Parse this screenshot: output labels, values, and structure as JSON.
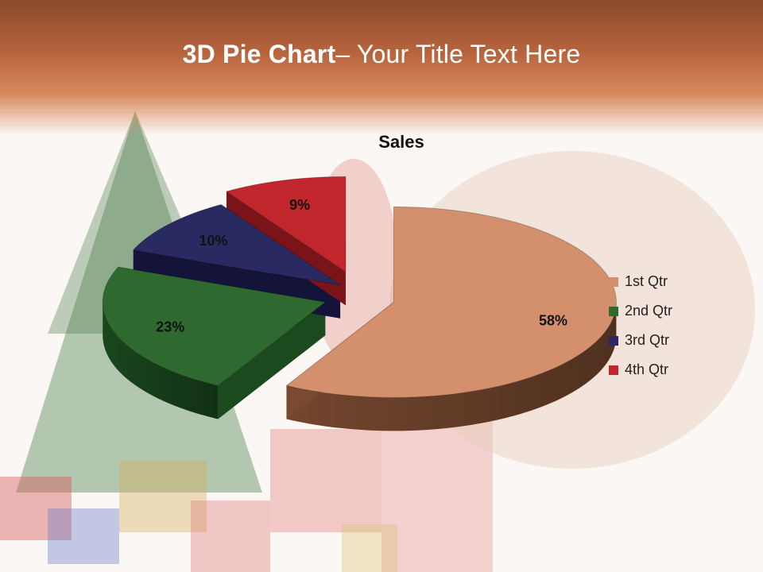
{
  "slide": {
    "title_bold": "3D Pie Chart",
    "title_rest": "– Your Title Text Here"
  },
  "chart_data": {
    "type": "pie",
    "title": "Sales",
    "categories": [
      "1st Qtr",
      "2nd Qtr",
      "3rd Qtr",
      "4th Qtr"
    ],
    "values": [
      58,
      23,
      10,
      9
    ],
    "data_labels": [
      "58%",
      "23%",
      "10%",
      "9%"
    ],
    "colors": [
      "#d4906c",
      "#2e6a30",
      "#2a2a63",
      "#c0262c"
    ],
    "side_colors": [
      "#7a4a30",
      "#1b4a1e",
      "#14143a",
      "#7a1418"
    ],
    "exploded": true,
    "legend_position": "right"
  }
}
